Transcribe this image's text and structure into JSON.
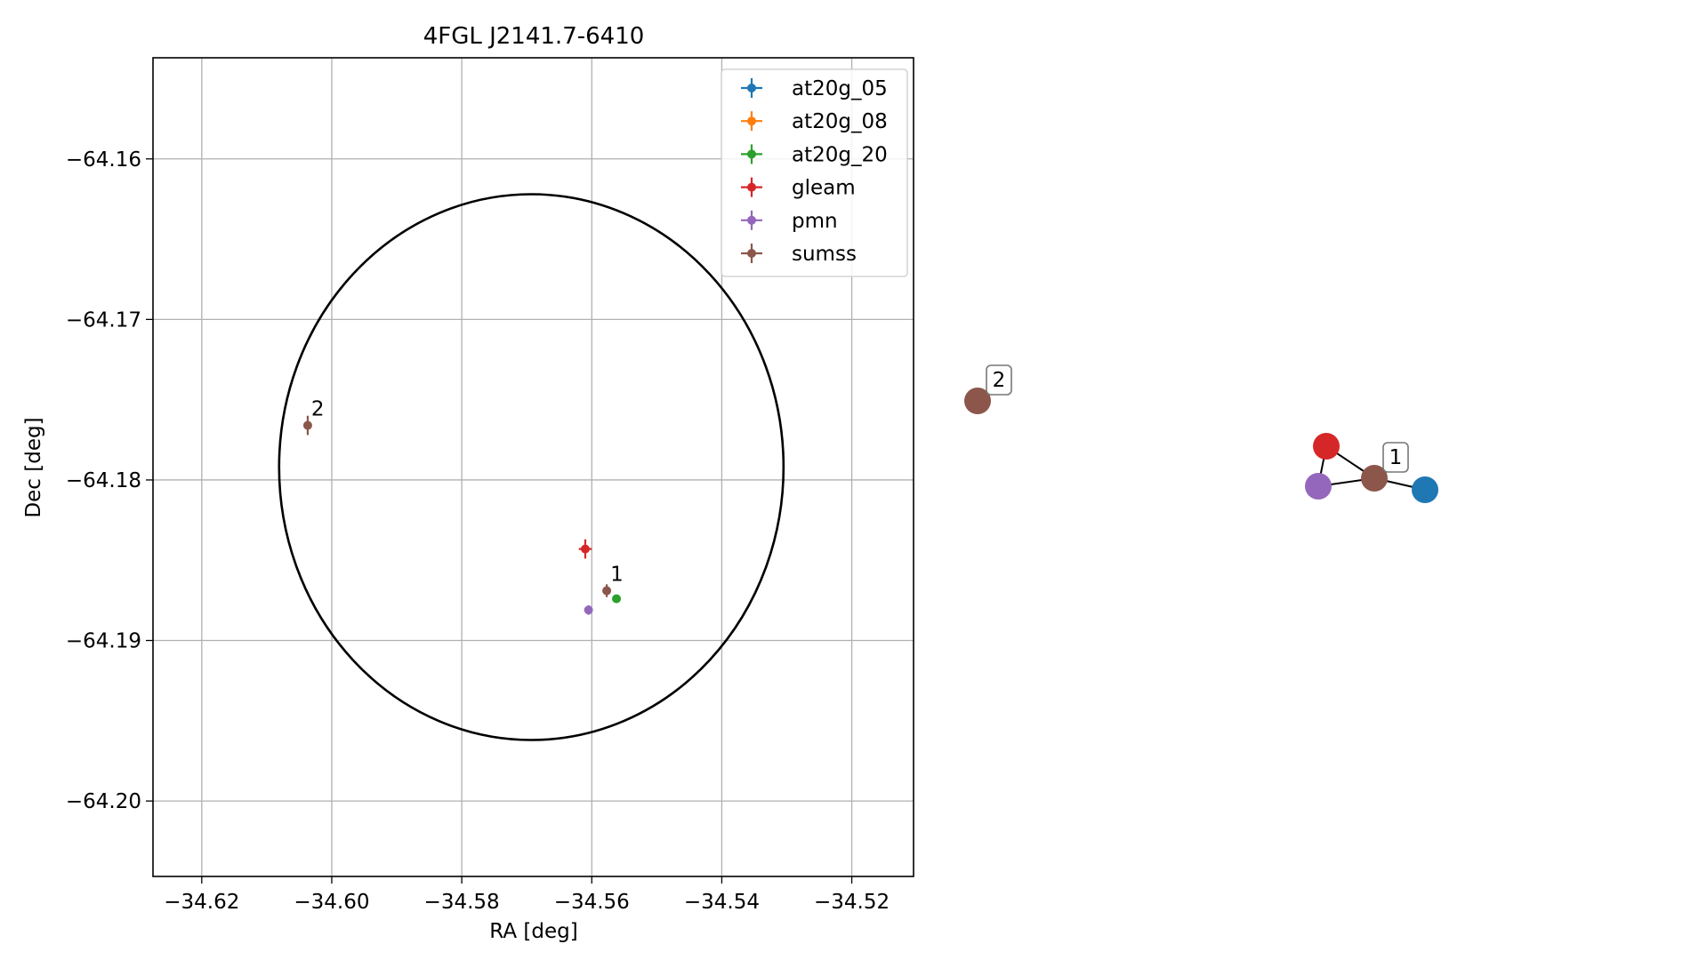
{
  "chart_data": [
    {
      "type": "scatter",
      "title": "4FGL J2141.7-6410",
      "xlabel": "RA [deg]",
      "ylabel": "Dec [deg]",
      "xlim": [
        -34.6275,
        -34.5105
      ],
      "ylim": [
        -64.2047,
        -64.1537
      ],
      "xticks": [
        -34.62,
        -34.6,
        -34.58,
        -34.56,
        -34.54,
        -34.52
      ],
      "xtick_labels": [
        "−34.62",
        "−34.60",
        "−34.58",
        "−34.56",
        "−34.54",
        "−34.52"
      ],
      "yticks": [
        -64.16,
        -64.17,
        -64.18,
        -64.19,
        -64.2
      ],
      "ytick_labels": [
        "−64.16",
        "−64.17",
        "−64.18",
        "−64.19",
        "−64.20"
      ],
      "grid": true,
      "legend_position": "top-right",
      "ellipse": {
        "center": [
          -34.5693,
          -64.1792
        ],
        "ra_semi_axis": 0.0388,
        "dec_semi_axis": 0.017,
        "color": "#000000"
      },
      "series": [
        {
          "name": "at20g_05",
          "color": "#1f77b4",
          "points": []
        },
        {
          "name": "at20g_08",
          "color": "#ff7f0e",
          "points": []
        },
        {
          "name": "at20g_20",
          "color": "#2ca02c",
          "points": [
            {
              "x": -34.5562,
              "y": -64.1874,
              "xerr": 0.0,
              "yerr": 0.0
            }
          ]
        },
        {
          "name": "gleam",
          "color": "#d62728",
          "points": [
            {
              "x": -34.561,
              "y": -64.1843,
              "xerr": 0.001,
              "yerr": 0.0006
            }
          ]
        },
        {
          "name": "pmn",
          "color": "#9467bd",
          "points": [
            {
              "x": -34.5605,
              "y": -64.1881,
              "xerr": 0.0004,
              "yerr": 0.0003
            }
          ]
        },
        {
          "name": "sumss",
          "color": "#8c564b",
          "points": [
            {
              "x": -34.5577,
              "y": -64.1869,
              "xerr": 0.0004,
              "yerr": 0.0004,
              "label": "1"
            },
            {
              "x": -34.6037,
              "y": -64.1766,
              "xerr": 0.0003,
              "yerr": 0.0006,
              "label": "2"
            }
          ]
        }
      ]
    },
    {
      "type": "network",
      "nodes": [
        {
          "id": "sumss-2",
          "color": "#8c564b",
          "label": "2"
        },
        {
          "id": "gleam",
          "color": "#d62728"
        },
        {
          "id": "pmn",
          "color": "#9467bd"
        },
        {
          "id": "sumss-1",
          "color": "#8c564b",
          "label": "1"
        },
        {
          "id": "at20g",
          "color": "#1f77b4"
        }
      ],
      "edges": [
        [
          "gleam",
          "pmn"
        ],
        [
          "gleam",
          "sumss-1"
        ],
        [
          "pmn",
          "sumss-1"
        ],
        [
          "sumss-1",
          "at20g"
        ]
      ]
    }
  ]
}
